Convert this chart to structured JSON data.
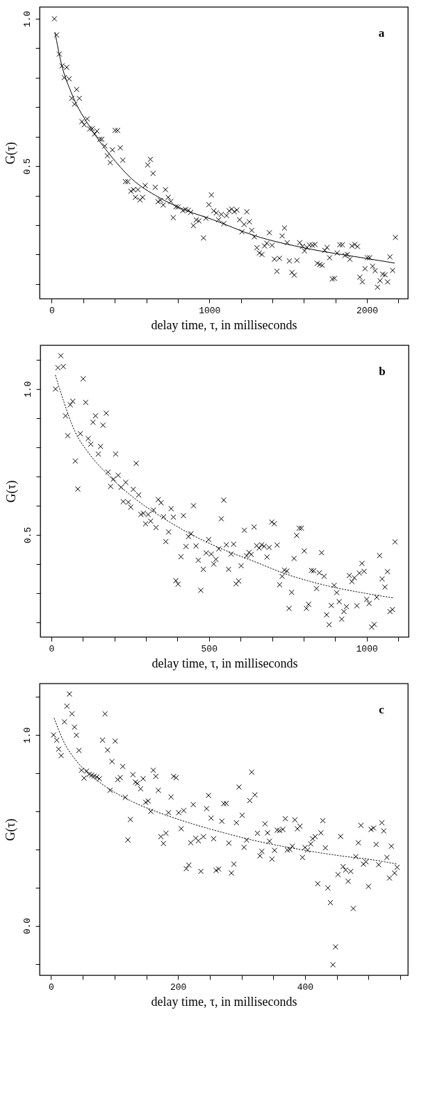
{
  "chart_data": [
    {
      "type": "scatter",
      "xlabel": "delay time, τ, in milliseconds",
      "ylabel": "G(τ)",
      "annotations": [
        "a"
      ],
      "xlim": [
        -77,
        2260
      ],
      "ylim": [
        0.05,
        1.04
      ],
      "xticks": [
        0,
        {
          "value": 200,
          "label": null
        },
        {
          "value": 400,
          "label": null
        },
        {
          "value": 600,
          "label": null
        },
        {
          "value": 800,
          "label": null
        },
        1000,
        {
          "value": 1200,
          "label": null
        },
        {
          "value": 1400,
          "label": null
        },
        {
          "value": 1600,
          "label": null
        },
        {
          "value": 1800,
          "label": null
        },
        2000,
        {
          "value": 2200,
          "label": null
        }
      ],
      "yticks": [
        {
          "value": 0.1,
          "label": null
        },
        {
          "value": 0.2,
          "label": null
        },
        {
          "value": 0.3,
          "label": null
        },
        {
          "value": 0.4,
          "label": null
        },
        0.5,
        {
          "value": 0.6,
          "label": null
        },
        {
          "value": 0.7,
          "label": null
        },
        {
          "value": 0.8,
          "label": null
        },
        {
          "value": 0.9,
          "label": null
        },
        {
          "value": 1,
          "label": "1.0"
        }
      ],
      "series": [
        {
          "type": "scatter",
          "color": "#000000",
          "marker": "cross",
          "x": [
            17,
            31,
            48,
            65,
            95,
            79,
            110,
            158,
            127,
            175,
            145,
            225,
            191,
            206,
            241,
            257,
            287,
            272,
            306,
            318,
            337,
            385,
            353,
            371,
            402,
            418,
            435,
            451,
            468,
            483,
            502,
            519,
            547,
            531,
            560,
            577,
            593,
            609,
            626,
            643,
            657,
            674,
            690,
            707,
            722,
            739,
            755,
            771,
            788,
            801,
            832,
            849,
            867,
            882,
            899,
            917,
            934,
            963,
            978,
            997,
            1013,
            1028,
            1044,
            1059,
            1076,
            1092,
            1109,
            1126,
            1142,
            1159,
            1175,
            1192,
            1221,
            1238,
            1254,
            1207,
            1269,
            1286,
            1302,
            1317,
            1334,
            1350,
            1365,
            1381,
            1398,
            1413,
            1429,
            1445,
            1462,
            1477,
            1494,
            1508,
            1524,
            1539,
            1556,
            1573,
            1591,
            1604,
            1620,
            1635,
            1653,
            1670,
            1685,
            1701,
            1716,
            1732,
            1747,
            1763,
            1780,
            1794,
            1811,
            1828,
            1844,
            1861,
            1876,
            1892,
            1905,
            1923,
            1940,
            1955,
            1971,
            1988,
            2003,
            2017,
            2036,
            2052,
            2067,
            2083,
            2100,
            2115,
            2131,
            2146,
            2163,
            2181
          ],
          "values": [
            1.0,
            0.945,
            0.88,
            0.84,
            0.835,
            0.8,
            0.796,
            0.76,
            0.73,
            0.73,
            0.71,
            0.66,
            0.651,
            0.64,
            0.626,
            0.627,
            0.619,
            0.609,
            0.591,
            0.591,
            0.568,
            0.555,
            0.535,
            0.512,
            0.621,
            0.621,
            0.562,
            0.52,
            0.447,
            0.447,
            0.415,
            0.42,
            0.42,
            0.394,
            0.385,
            0.394,
            0.434,
            0.504,
            0.523,
            0.475,
            0.428,
            0.379,
            0.384,
            0.368,
            0.42,
            0.394,
            0.38,
            0.325,
            0.362,
            0.361,
            0.349,
            0.353,
            0.35,
            0.343,
            0.298,
            0.317,
            0.314,
            0.256,
            0.323,
            0.369,
            0.402,
            0.348,
            0.341,
            0.318,
            0.336,
            0.305,
            0.332,
            0.348,
            0.354,
            0.345,
            0.351,
            0.318,
            0.302,
            0.345,
            0.311,
            0.277,
            0.282,
            0.26,
            0.223,
            0.205,
            0.2,
            0.229,
            0.238,
            0.274,
            0.231,
            0.184,
            0.143,
            0.187,
            0.263,
            0.29,
            0.24,
            0.178,
            0.139,
            0.13,
            0.18,
            0.24,
            0.228,
            0.212,
            0.224,
            0.232,
            0.232,
            0.234,
            0.17,
            0.166,
            0.163,
            0.214,
            0.224,
            0.189,
            0.117,
            0.119,
            0.205,
            0.233,
            0.233,
            0.197,
            0.2,
            0.184,
            0.229,
            0.234,
            0.227,
            0.123,
            0.107,
            0.152,
            0.189,
            0.189,
            0.16,
            0.145,
            0.089,
            0.111,
            0.133,
            0.131,
            0.107,
            0.192,
            0.146,
            0.258
          ]
        },
        {
          "type": "line",
          "color": "#000000",
          "line_style": "solid",
          "x": [
            21,
            60,
            129,
            249,
            370,
            507,
            679,
            851,
            1023,
            1281,
            1625,
            1969,
            2175
          ],
          "values": [
            0.953,
            0.85,
            0.743,
            0.627,
            0.538,
            0.457,
            0.394,
            0.35,
            0.318,
            0.265,
            0.22,
            0.189,
            0.171
          ]
        }
      ]
    },
    {
      "type": "scatter",
      "xlabel": "delay time, τ, in milliseconds",
      "ylabel": "G(τ)",
      "annotations": [
        "b"
      ],
      "xlim": [
        -35,
        1133
      ],
      "ylim": [
        0.15,
        1.15
      ],
      "xticks": [
        0,
        {
          "value": 100,
          "label": null
        },
        {
          "value": 200,
          "label": null
        },
        {
          "value": 300,
          "label": null
        },
        {
          "value": 400,
          "label": null
        },
        500,
        {
          "value": 600,
          "label": null
        },
        {
          "value": 700,
          "label": null
        },
        {
          "value": 800,
          "label": null
        },
        {
          "value": 900,
          "label": null
        },
        1000,
        {
          "value": 1100,
          "label": null
        }
      ],
      "yticks": [
        {
          "value": 0.2,
          "label": null
        },
        {
          "value": 0.3,
          "label": null
        },
        {
          "value": 0.4,
          "label": null
        },
        0.5,
        {
          "value": 0.6,
          "label": null
        },
        {
          "value": 0.7,
          "label": null
        },
        {
          "value": 0.8,
          "label": null
        },
        {
          "value": 0.9,
          "label": null
        },
        {
          "value": 1,
          "label": "1.0"
        },
        {
          "value": 1.1,
          "label": null
        }
      ],
      "series": [
        {
          "type": "scatter",
          "color": "#000000",
          "marker": "cross",
          "x": [
            13,
            21,
            30,
            38,
            45,
            52,
            60,
            68,
            76,
            84,
            92,
            101,
            109,
            117,
            125,
            132,
            140,
            149,
            156,
            164,
            174,
            180,
            188,
            197,
            204,
            212,
            221,
            228,
            236,
            244,
            252,
            260,
            269,
            277,
            284,
            292,
            299,
            307,
            315,
            324,
            332,
            339,
            348,
            356,
            363,
            372,
            380,
            387,
            395,
            402,
            411,
            419,
            427,
            435,
            443,
            451,
            459,
            466,
            474,
            482,
            491,
            499,
            507,
            515,
            522,
            531,
            539,
            547,
            555,
            562,
            570,
            578,
            586,
            594,
            602,
            612,
            619,
            627,
            634,
            643,
            651,
            659,
            667,
            675,
            684,
            691,
            699,
            707,
            716,
            724,
            732,
            739,
            747,
            754,
            762,
            770,
            778,
            786,
            793,
            802,
            809,
            816,
            825,
            832,
            841,
            850,
            857,
            865,
            873,
            881,
            888,
            897,
            905,
            913,
            921,
            928,
            936,
            945,
            953,
            961,
            969,
            977,
            985,
            992,
            1000,
            1008,
            1016,
            1024,
            1032,
            1041,
            1049,
            1058,
            1066,
            1074,
            1082,
            1090
          ],
          "values": [
            1.0,
            1.073,
            1.114,
            1.077,
            0.908,
            0.84,
            0.946,
            0.958,
            0.753,
            0.657,
            0.847,
            1.035,
            0.954,
            0.83,
            0.811,
            0.886,
            0.908,
            0.777,
            0.803,
            0.876,
            0.917,
            0.715,
            0.666,
            0.691,
            0.777,
            0.704,
            0.663,
            0.614,
            0.68,
            0.612,
            0.595,
            0.656,
            0.745,
            0.637,
            0.57,
            0.574,
            0.538,
            0.57,
            0.547,
            0.585,
            0.525,
            0.621,
            0.61,
            0.562,
            0.477,
            0.51,
            0.59,
            0.561,
            0.343,
            0.331,
            0.425,
            0.566,
            0.46,
            0.494,
            0.504,
            0.6,
            0.462,
            0.413,
            0.31,
            0.382,
            0.438,
            0.484,
            0.434,
            0.4,
            0.416,
            0.452,
            0.555,
            0.619,
            0.466,
            0.382,
            0.434,
            0.468,
            0.332,
            0.342,
            0.394,
            0.516,
            0.428,
            0.44,
            0.433,
            0.527,
            0.463,
            0.455,
            0.466,
            0.461,
            0.424,
            0.457,
            0.544,
            0.538,
            0.465,
            0.329,
            0.358,
            0.379,
            0.376,
            0.248,
            0.303,
            0.419,
            0.498,
            0.523,
            0.523,
            0.445,
            0.248,
            0.262,
            0.378,
            0.377,
            0.316,
            0.37,
            0.439,
            0.358,
            0.226,
            0.192,
            0.258,
            0.327,
            0.302,
            0.271,
            0.211,
            0.237,
            0.254,
            0.361,
            0.34,
            0.353,
            0.257,
            0.369,
            0.402,
            0.375,
            0.279,
            0.265,
            0.184,
            0.193,
            0.286,
            0.429,
            0.349,
            0.321,
            0.374,
            0.237,
            0.244,
            0.476
          ]
        },
        {
          "type": "line",
          "color": "#000000",
          "line_style": "dotted",
          "x": [
            13,
            40,
            75,
            118,
            178,
            264,
            350,
            436,
            521,
            650,
            736,
            865,
            994,
            1084
          ],
          "values": [
            1.047,
            0.955,
            0.854,
            0.781,
            0.708,
            0.625,
            0.561,
            0.506,
            0.461,
            0.406,
            0.369,
            0.328,
            0.3,
            0.284
          ]
        }
      ]
    },
    {
      "type": "scatter",
      "xlabel": "delay time, τ, in milliseconds",
      "ylabel": "G(τ)",
      "annotations": [
        "c"
      ],
      "xlim": [
        -18,
        562
      ],
      "ylim": [
        -0.26,
        1.27
      ],
      "xticks": [
        0,
        {
          "value": 50,
          "label": null
        },
        {
          "value": 100,
          "label": null
        },
        {
          "value": 150,
          "label": null
        },
        200,
        {
          "value": 250,
          "label": null
        },
        {
          "value": 300,
          "label": null
        },
        {
          "value": 350,
          "label": null
        },
        400,
        {
          "value": 450,
          "label": null
        },
        {
          "value": 500,
          "label": null
        },
        {
          "value": 550,
          "label": null
        }
      ],
      "yticks": [
        {
          "value": -0.2,
          "label": null
        },
        {
          "value": 0,
          "label": "0.0"
        },
        {
          "value": 0.2,
          "label": null
        },
        {
          "value": 0.4,
          "label": null
        },
        {
          "value": 0.6,
          "label": null
        },
        {
          "value": 0.8,
          "label": null
        },
        {
          "value": 1,
          "label": "1.0"
        },
        {
          "value": 1.2,
          "label": null
        }
      ],
      "series": [
        {
          "type": "scatter",
          "color": "#000000",
          "marker": "cross",
          "x": [
            4,
            9,
            12,
            16,
            21,
            25,
            29,
            33,
            37,
            40,
            44,
            48,
            52,
            56,
            60,
            64,
            68,
            72,
            76,
            81,
            85,
            89,
            93,
            96,
            101,
            105,
            109,
            113,
            117,
            121,
            125,
            129,
            133,
            136,
            141,
            145,
            149,
            153,
            157,
            161,
            165,
            169,
            173,
            177,
            181,
            185,
            189,
            193,
            197,
            201,
            205,
            209,
            213,
            217,
            220,
            224,
            228,
            232,
            236,
            240,
            245,
            248,
            252,
            256,
            260,
            264,
            269,
            272,
            276,
            280,
            284,
            288,
            292,
            296,
            301,
            304,
            308,
            313,
            316,
            321,
            325,
            329,
            332,
            337,
            341,
            344,
            348,
            352,
            356,
            360,
            365,
            369,
            372,
            376,
            380,
            384,
            388,
            392,
            396,
            400,
            404,
            409,
            412,
            416,
            420,
            425,
            428,
            432,
            436,
            440,
            444,
            448,
            452,
            456,
            460,
            464,
            468,
            472,
            476,
            480,
            484,
            488,
            492,
            496,
            500,
            504,
            508,
            512,
            516,
            521,
            524,
            529,
            533,
            536,
            541,
            545
          ],
          "values": [
            1.0,
            0.973,
            0.926,
            0.892,
            1.069,
            1.151,
            1.215,
            1.111,
            1.041,
            0.999,
            0.919,
            0.815,
            0.774,
            0.811,
            0.794,
            0.79,
            0.785,
            0.78,
            0.771,
            0.973,
            1.111,
            0.921,
            0.71,
            0.861,
            0.968,
            0.766,
            0.777,
            0.835,
            0.673,
            0.45,
            0.557,
            0.792,
            0.753,
            0.746,
            0.718,
            0.771,
            0.647,
            0.654,
            0.599,
            0.815,
            0.783,
            0.71,
            0.467,
            0.431,
            0.485,
            0.593,
            0.675,
            0.783,
            0.776,
            0.593,
            0.509,
            0.604,
            0.299,
            0.318,
            0.435,
            0.635,
            0.459,
            0.445,
            0.285,
            0.467,
            0.614,
            0.683,
            0.564,
            0.456,
            0.29,
            0.297,
            0.548,
            0.64,
            0.641,
            0.433,
            0.276,
            0.323,
            0.54,
            0.727,
            0.579,
            0.411,
            0.449,
            0.656,
            0.805,
            0.686,
            0.485,
            0.366,
            0.39,
            0.534,
            0.487,
            0.443,
            0.349,
            0.395,
            0.501,
            0.499,
            0.505,
            0.561,
            0.397,
            0.4,
            0.417,
            0.555,
            0.508,
            0.522,
            0.358,
            0.41,
            0.397,
            0.429,
            0.456,
            0.467,
            0.22,
            0.487,
            0.551,
            0.408,
            0.198,
            0.121,
            -0.205,
            -0.111,
            0.268,
            0.468,
            0.31,
            0.292,
            0.233,
            0.285,
            0.09,
            0.362,
            0.435,
            0.526,
            0.323,
            0.335,
            0.206,
            0.505,
            0.512,
            0.426,
            0.32,
            0.54,
            0.497,
            0.358,
            0.25,
            0.417,
            0.276,
            0.306
          ]
        },
        {
          "type": "line",
          "color": "#000000",
          "line_style": "dotted",
          "x": [
            5,
            19,
            41,
            62,
            84,
            127,
            170,
            213,
            256,
            321,
            385,
            450,
            515,
            545
          ],
          "values": [
            1.088,
            0.972,
            0.86,
            0.79,
            0.734,
            0.652,
            0.593,
            0.544,
            0.502,
            0.446,
            0.404,
            0.369,
            0.341,
            0.323
          ]
        }
      ]
    }
  ]
}
